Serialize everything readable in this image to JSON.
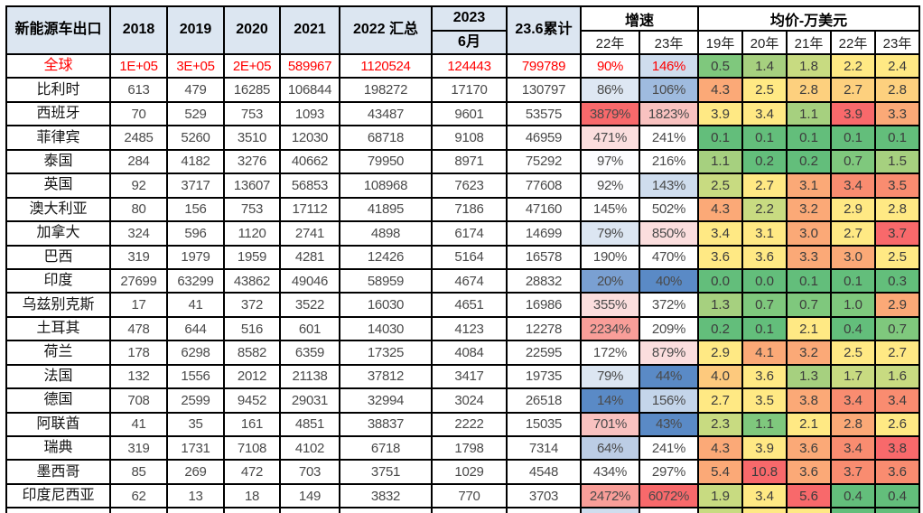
{
  "chart_data": {
    "type": "table",
    "title": "新能源车出口",
    "header": {
      "corner": "新能源车出口",
      "years": [
        "2018",
        "2019",
        "2020",
        "2021"
      ],
      "total_2022": "2022 汇总",
      "y2023": "2023",
      "jun": "6月",
      "cum": "23.6累计",
      "growth_label": "增速",
      "growth_subs": [
        "22年",
        "23年"
      ],
      "price_label": "均价-万美元",
      "price_subs": [
        "19年",
        "20年",
        "21年",
        "22年",
        "23年"
      ]
    },
    "rows": [
      {
        "name": "全球",
        "red": true,
        "values": [
          "1E+05",
          "3E+05",
          "2E+05",
          "589967",
          "1120524",
          "124443",
          "799789"
        ],
        "growth": [
          {
            "t": "90%",
            "bg": "#FDFDFF"
          },
          {
            "t": "146%",
            "bg": "#CFDDEE"
          }
        ],
        "price": [
          {
            "t": "0.5",
            "bg": "#7FC87D"
          },
          {
            "t": "1.4",
            "bg": "#A6D07F"
          },
          {
            "t": "1.8",
            "bg": "#C8DB81"
          },
          {
            "t": "2.2",
            "bg": "#FFE984"
          },
          {
            "t": "2.4",
            "bg": "#FFE984"
          }
        ]
      },
      {
        "name": "比利时",
        "red": false,
        "values": [
          "613",
          "479",
          "16285",
          "106844",
          "198272",
          "17170",
          "130797"
        ],
        "growth": [
          {
            "t": "86%",
            "bg": "#DEE7F3"
          },
          {
            "t": "106%",
            "bg": "#9FBBDF"
          }
        ],
        "price": [
          {
            "t": "4.3",
            "bg": "#FBA977"
          },
          {
            "t": "2.5",
            "bg": "#FFE984"
          },
          {
            "t": "2.8",
            "bg": "#FDD07E"
          },
          {
            "t": "2.7",
            "bg": "#FDD07E"
          },
          {
            "t": "2.8",
            "bg": "#FDD07E"
          }
        ]
      },
      {
        "name": "西班牙",
        "red": false,
        "values": [
          "70",
          "529",
          "753",
          "1093",
          "43487",
          "9601",
          "53575"
        ],
        "growth": [
          {
            "t": "3879%",
            "bg": "#F8696B"
          },
          {
            "t": "1823%",
            "bg": "#F9C2C0"
          }
        ],
        "price": [
          {
            "t": "3.9",
            "bg": "#FFE984"
          },
          {
            "t": "3.4",
            "bg": "#FFE984"
          },
          {
            "t": "1.1",
            "bg": "#A6D07F"
          },
          {
            "t": "3.9",
            "bg": "#F8696B"
          },
          {
            "t": "3.3",
            "bg": "#FBA977"
          }
        ]
      },
      {
        "name": "菲律宾",
        "red": false,
        "values": [
          "2485",
          "5260",
          "3510",
          "12030",
          "68718",
          "9108",
          "46959"
        ],
        "growth": [
          {
            "t": "471%",
            "bg": "#FBDEDE"
          },
          {
            "t": "241%",
            "bg": "#FFFFFF"
          }
        ],
        "price": [
          {
            "t": "0.1",
            "bg": "#63BE7B"
          },
          {
            "t": "0.1",
            "bg": "#63BE7B"
          },
          {
            "t": "0.1",
            "bg": "#63BE7B"
          },
          {
            "t": "0.1",
            "bg": "#63BE7B"
          },
          {
            "t": "0.1",
            "bg": "#63BE7B"
          }
        ]
      },
      {
        "name": "泰国",
        "red": false,
        "values": [
          "284",
          "4182",
          "3276",
          "40662",
          "79950",
          "8971",
          "75292"
        ],
        "growth": [
          {
            "t": "97%",
            "bg": "#FDFDFF"
          },
          {
            "t": "216%",
            "bg": "#FFFFFF"
          }
        ],
        "price": [
          {
            "t": "1.1",
            "bg": "#A6D07F"
          },
          {
            "t": "0.2",
            "bg": "#63BE7B"
          },
          {
            "t": "0.2",
            "bg": "#63BE7B"
          },
          {
            "t": "0.7",
            "bg": "#7FC87D"
          },
          {
            "t": "1.5",
            "bg": "#A6D07F"
          }
        ]
      },
      {
        "name": "英国",
        "red": false,
        "values": [
          "92",
          "3717",
          "13607",
          "56853",
          "108968",
          "7623",
          "77608"
        ],
        "growth": [
          {
            "t": "92%",
            "bg": "#FDFDFF"
          },
          {
            "t": "143%",
            "bg": "#CFDDEE"
          }
        ],
        "price": [
          {
            "t": "2.5",
            "bg": "#C8DB81"
          },
          {
            "t": "2.7",
            "bg": "#FFE984"
          },
          {
            "t": "3.1",
            "bg": "#FBA977"
          },
          {
            "t": "3.4",
            "bg": "#F98C70"
          },
          {
            "t": "3.5",
            "bg": "#F98C70"
          }
        ]
      },
      {
        "name": "澳大利亚",
        "red": false,
        "values": [
          "80",
          "156",
          "753",
          "17112",
          "41895",
          "7186",
          "47160"
        ],
        "growth": [
          {
            "t": "145%",
            "bg": "#FFFFFF"
          },
          {
            "t": "502%",
            "bg": "#FFFFFF"
          }
        ],
        "price": [
          {
            "t": "4.3",
            "bg": "#FBA977"
          },
          {
            "t": "2.2",
            "bg": "#C8DB81"
          },
          {
            "t": "3.2",
            "bg": "#FBA977"
          },
          {
            "t": "2.9",
            "bg": "#FFE984"
          },
          {
            "t": "2.8",
            "bg": "#FFE984"
          }
        ]
      },
      {
        "name": "加拿大",
        "red": false,
        "values": [
          "324",
          "596",
          "1120",
          "2741",
          "4898",
          "6174",
          "14699"
        ],
        "growth": [
          {
            "t": "79%",
            "bg": "#DCE6F2"
          },
          {
            "t": "850%",
            "bg": "#FBDEDE"
          }
        ],
        "price": [
          {
            "t": "3.4",
            "bg": "#FFE984"
          },
          {
            "t": "3.1",
            "bg": "#FFE984"
          },
          {
            "t": "3.0",
            "bg": "#FBA977"
          },
          {
            "t": "2.7",
            "bg": "#FFE984"
          },
          {
            "t": "3.7",
            "bg": "#F8696B"
          }
        ]
      },
      {
        "name": "巴西",
        "red": false,
        "values": [
          "319",
          "1979",
          "1959",
          "4281",
          "12426",
          "5164",
          "16578"
        ],
        "growth": [
          {
            "t": "190%",
            "bg": "#FFFFFF"
          },
          {
            "t": "470%",
            "bg": "#FFFFFF"
          }
        ],
        "price": [
          {
            "t": "3.6",
            "bg": "#FFE984"
          },
          {
            "t": "3.6",
            "bg": "#FFE984"
          },
          {
            "t": "3.3",
            "bg": "#FBA977"
          },
          {
            "t": "3.0",
            "bg": "#FBA977"
          },
          {
            "t": "2.5",
            "bg": "#FFE984"
          }
        ]
      },
      {
        "name": "印度",
        "red": false,
        "values": [
          "27699",
          "63299",
          "43862",
          "49046",
          "58959",
          "4674",
          "28832"
        ],
        "growth": [
          {
            "t": "20%",
            "bg": "#7AA0D2"
          },
          {
            "t": "40%",
            "bg": "#5A8AC6"
          }
        ],
        "price": [
          {
            "t": "0.0",
            "bg": "#63BE7B"
          },
          {
            "t": "0.0",
            "bg": "#63BE7B"
          },
          {
            "t": "0.1",
            "bg": "#63BE7B"
          },
          {
            "t": "0.1",
            "bg": "#63BE7B"
          },
          {
            "t": "0.3",
            "bg": "#63BE7B"
          }
        ]
      },
      {
        "name": "乌兹别克斯",
        "red": false,
        "values": [
          "17",
          "41",
          "372",
          "3522",
          "16030",
          "4651",
          "16986"
        ],
        "growth": [
          {
            "t": "355%",
            "bg": "#FBDEDE"
          },
          {
            "t": "372%",
            "bg": "#FFFFFF"
          }
        ],
        "price": [
          {
            "t": "1.3",
            "bg": "#A6D07F"
          },
          {
            "t": "0.7",
            "bg": "#7FC87D"
          },
          {
            "t": "0.7",
            "bg": "#7FC87D"
          },
          {
            "t": "1.0",
            "bg": "#7FC87D"
          },
          {
            "t": "2.9",
            "bg": "#FBA977"
          }
        ]
      },
      {
        "name": "土耳其",
        "red": false,
        "values": [
          "478",
          "644",
          "516",
          "601",
          "14030",
          "4123",
          "12278"
        ],
        "growth": [
          {
            "t": "2234%",
            "bg": "#F99E99"
          },
          {
            "t": "209%",
            "bg": "#FFFFFF"
          }
        ],
        "price": [
          {
            "t": "0.2",
            "bg": "#63BE7B"
          },
          {
            "t": "0.1",
            "bg": "#63BE7B"
          },
          {
            "t": "2.1",
            "bg": "#FFE984"
          },
          {
            "t": "0.4",
            "bg": "#63BE7B"
          },
          {
            "t": "0.7",
            "bg": "#7FC87D"
          }
        ]
      },
      {
        "name": "荷兰",
        "red": false,
        "values": [
          "178",
          "6298",
          "8582",
          "6359",
          "17325",
          "4084",
          "22595"
        ],
        "growth": [
          {
            "t": "172%",
            "bg": "#FFFFFF"
          },
          {
            "t": "879%",
            "bg": "#FBDEDE"
          }
        ],
        "price": [
          {
            "t": "2.9",
            "bg": "#FFE984"
          },
          {
            "t": "4.1",
            "bg": "#FBA977"
          },
          {
            "t": "3.2",
            "bg": "#FBA977"
          },
          {
            "t": "2.5",
            "bg": "#FFE984"
          },
          {
            "t": "2.7",
            "bg": "#FFE984"
          }
        ]
      },
      {
        "name": "法国",
        "red": false,
        "values": [
          "132",
          "1556",
          "2012",
          "21138",
          "37812",
          "3417",
          "19735"
        ],
        "growth": [
          {
            "t": "79%",
            "bg": "#DCE6F2"
          },
          {
            "t": "44%",
            "bg": "#5A8AC6"
          }
        ],
        "price": [
          {
            "t": "4.0",
            "bg": "#FDC97D"
          },
          {
            "t": "3.6",
            "bg": "#FFE984"
          },
          {
            "t": "1.3",
            "bg": "#A6D07F"
          },
          {
            "t": "1.7",
            "bg": "#C8DB81"
          },
          {
            "t": "1.6",
            "bg": "#C8DB81"
          }
        ]
      },
      {
        "name": "德国",
        "red": false,
        "values": [
          "708",
          "2599",
          "9452",
          "29031",
          "32994",
          "3024",
          "26518"
        ],
        "growth": [
          {
            "t": "14%",
            "bg": "#5A8AC6"
          },
          {
            "t": "156%",
            "bg": "#C4D5EA"
          }
        ],
        "price": [
          {
            "t": "2.7",
            "bg": "#FFE984"
          },
          {
            "t": "3.5",
            "bg": "#FFE984"
          },
          {
            "t": "3.8",
            "bg": "#FBA977"
          },
          {
            "t": "3.4",
            "bg": "#F98C70"
          },
          {
            "t": "3.4",
            "bg": "#F98C70"
          }
        ]
      },
      {
        "name": "阿联酋",
        "red": false,
        "values": [
          "41",
          "35",
          "161",
          "4851",
          "38837",
          "2222",
          "15035"
        ],
        "growth": [
          {
            "t": "701%",
            "bg": "#F9C2C0"
          },
          {
            "t": "43%",
            "bg": "#5A8AC6"
          }
        ],
        "price": [
          {
            "t": "2.3",
            "bg": "#C8DB81"
          },
          {
            "t": "1.1",
            "bg": "#7FC87D"
          },
          {
            "t": "2.1",
            "bg": "#FFE984"
          },
          {
            "t": "2.8",
            "bg": "#FBA977"
          },
          {
            "t": "2.6",
            "bg": "#FFE984"
          }
        ]
      },
      {
        "name": "瑞典",
        "red": false,
        "values": [
          "319",
          "1731",
          "7108",
          "4102",
          "6718",
          "1798",
          "7314"
        ],
        "growth": [
          {
            "t": "64%",
            "bg": "#BCCDE5"
          },
          {
            "t": "241%",
            "bg": "#FFFFFF"
          }
        ],
        "price": [
          {
            "t": "4.3",
            "bg": "#FBA977"
          },
          {
            "t": "3.9",
            "bg": "#FFE984"
          },
          {
            "t": "3.6",
            "bg": "#FBA977"
          },
          {
            "t": "3.4",
            "bg": "#F98C70"
          },
          {
            "t": "3.8",
            "bg": "#F8696B"
          }
        ]
      },
      {
        "name": "墨西哥",
        "red": false,
        "values": [
          "85",
          "269",
          "472",
          "703",
          "3751",
          "1029",
          "4548"
        ],
        "growth": [
          {
            "t": "434%",
            "bg": "#FFFFFF"
          },
          {
            "t": "297%",
            "bg": "#FFFFFF"
          }
        ],
        "price": [
          {
            "t": "5.4",
            "bg": "#FBA977"
          },
          {
            "t": "10.8",
            "bg": "#F8696B"
          },
          {
            "t": "3.6",
            "bg": "#FBA977"
          },
          {
            "t": "3.7",
            "bg": "#F98C70"
          },
          {
            "t": "3.6",
            "bg": "#F98C70"
          }
        ]
      },
      {
        "name": "印度尼西亚",
        "red": false,
        "values": [
          "62",
          "13",
          "18",
          "149",
          "3832",
          "770",
          "3703"
        ],
        "growth": [
          {
            "t": "2472%",
            "bg": "#F99E99"
          },
          {
            "t": "6072%",
            "bg": "#F8696B"
          }
        ],
        "price": [
          {
            "t": "1.9",
            "bg": "#C8DB81"
          },
          {
            "t": "3.4",
            "bg": "#FFE984"
          },
          {
            "t": "5.6",
            "bg": "#F8696B"
          },
          {
            "t": "0.4",
            "bg": "#63BE7B"
          },
          {
            "t": "0.4",
            "bg": "#63BE7B"
          }
        ]
      }
    ],
    "partial_row": {
      "growth_bg": [
        "#CFDDEE",
        "#FFFFFF"
      ],
      "price_bg": [
        "#C8DB81",
        "#FFE984",
        "#FFE984",
        "#63BE7B",
        "#63BE7B"
      ]
    }
  },
  "style": {
    "header_bg": "#DCE6F1",
    "global_row_text": "#FF0000",
    "border": "#000000",
    "number_text": "#4A4A4A"
  }
}
